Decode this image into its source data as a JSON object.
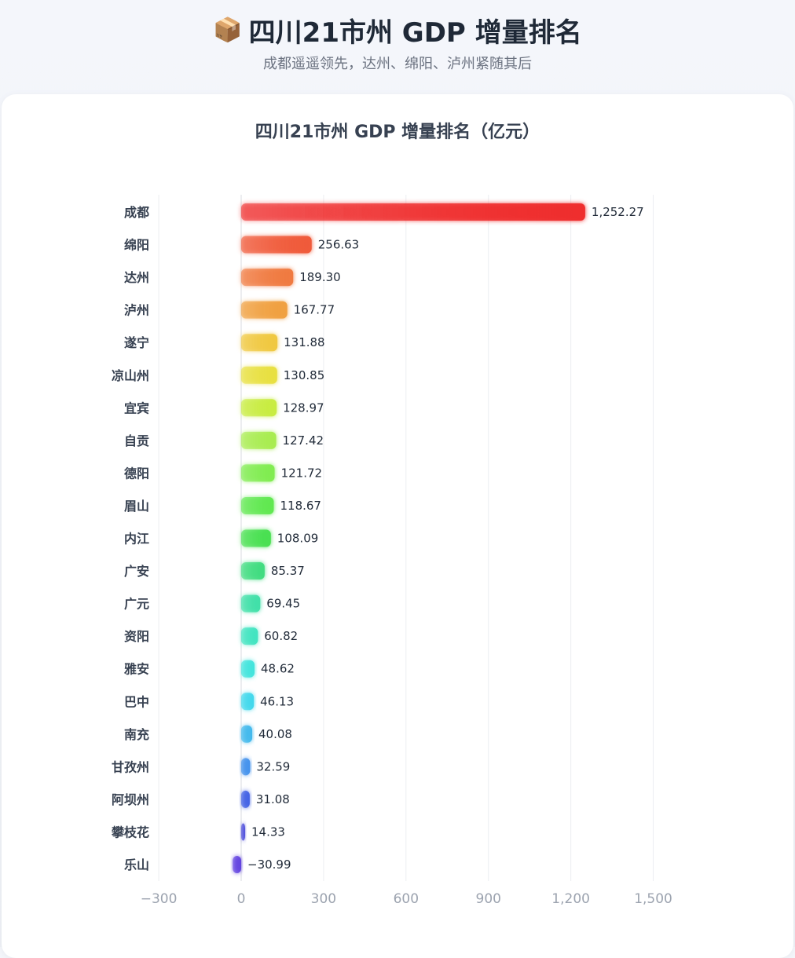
{
  "header": {
    "title_icon": "📦",
    "title": "四川21市州 GDP 增量排名",
    "subtitle": "成都遥遥领先，达州、绵阳、泸州紧随其后"
  },
  "chart_data": {
    "type": "bar",
    "orientation": "horizontal",
    "title": "四川21市州 GDP 增量排名（亿元）",
    "categories": [
      "成都",
      "绵阳",
      "达州",
      "泸州",
      "遂宁",
      "凉山州",
      "宜宾",
      "自贡",
      "德阳",
      "眉山",
      "内江",
      "广安",
      "广元",
      "资阳",
      "雅安",
      "巴中",
      "南充",
      "甘孜州",
      "阿坝州",
      "攀枝花",
      "乐山"
    ],
    "values": [
      1252.27,
      256.63,
      189.3,
      167.77,
      131.88,
      130.85,
      128.97,
      127.42,
      121.72,
      118.67,
      108.09,
      85.37,
      69.45,
      60.82,
      48.62,
      46.13,
      40.08,
      32.59,
      31.08,
      14.33,
      -30.99
    ],
    "value_labels": [
      "1,252.27",
      "256.63",
      "189.30",
      "167.77",
      "131.88",
      "130.85",
      "128.97",
      "127.42",
      "121.72",
      "118.67",
      "108.09",
      "85.37",
      "69.45",
      "60.82",
      "48.62",
      "46.13",
      "40.08",
      "32.59",
      "31.08",
      "14.33",
      "−30.99"
    ],
    "colors": [
      "#ef2f2f",
      "#f05a3a",
      "#f07a40",
      "#f0a040",
      "#f0c840",
      "#e8e040",
      "#c8ec40",
      "#a8ec50",
      "#80ec50",
      "#60e850",
      "#48e050",
      "#40dc80",
      "#40e0a8",
      "#40e4c0",
      "#40e4dc",
      "#40d8ec",
      "#40b8ec",
      "#4090ec",
      "#4060e4",
      "#5050dc",
      "#6040e0"
    ],
    "xlim": [
      -300,
      1500
    ],
    "xticks": [
      -300,
      0,
      300,
      600,
      900,
      1200,
      1500
    ],
    "xtick_labels": [
      "−300",
      "0",
      "300",
      "600",
      "900",
      "1,200",
      "1,500"
    ],
    "grid": true
  }
}
